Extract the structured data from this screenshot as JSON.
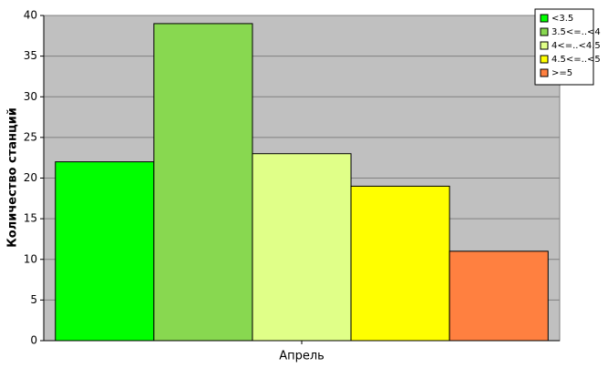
{
  "chart_data": {
    "type": "bar",
    "y_label": "Количество станций",
    "categories": [
      "Апрель"
    ],
    "series": [
      {
        "name": "<3.5",
        "color": "#00ff00",
        "values": [
          22
        ]
      },
      {
        "name": "3.5<=..<4",
        "color": "#88d850",
        "values": [
          39
        ]
      },
      {
        "name": "4<=..<4.5",
        "color": "#e0ff88",
        "values": [
          23
        ]
      },
      {
        "name": "4.5<=..<5",
        "color": "#ffff00",
        "values": [
          19
        ]
      },
      {
        "name": ">=5",
        "color": "#ff8040",
        "values": [
          11
        ]
      }
    ],
    "ylim": [
      0,
      40
    ],
    "yticks": [
      0,
      5,
      10,
      15,
      20,
      25,
      30,
      35,
      40
    ],
    "grid": true,
    "legend": "top-right"
  }
}
